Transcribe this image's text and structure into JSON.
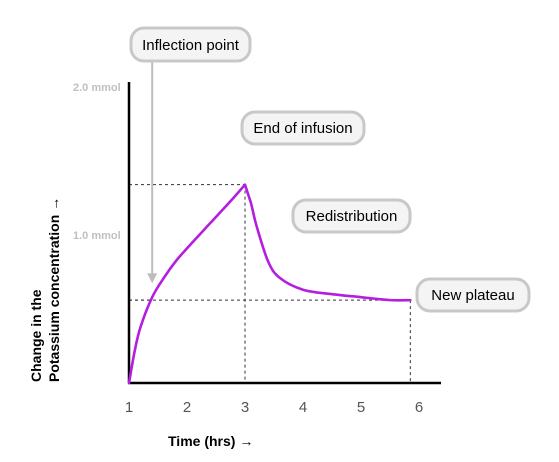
{
  "chart_data": {
    "type": "line",
    "xlabel": "Time (hrs) →",
    "ylabel_line1": "Change in the",
    "ylabel_line2": "Potassium concentration →",
    "x_ticks": [
      "1",
      "2",
      "3",
      "4",
      "5",
      "6"
    ],
    "y_ticks": [
      {
        "value": 2.0,
        "label": "2.0 mmol"
      },
      {
        "value": 1.0,
        "label": "1.0 mmol"
      }
    ],
    "xlim": [
      1,
      6.6
    ],
    "ylim": [
      0,
      2.2
    ],
    "series": [
      {
        "color": "#b31ee0",
        "x": [
          1.0,
          1.1,
          1.2,
          1.4,
          1.6,
          1.8,
          2.0,
          2.4,
          2.8,
          3.0,
          3.1,
          3.2,
          3.4,
          3.6,
          4.0,
          4.5,
          5.0,
          5.5,
          5.85
        ],
        "y": [
          0.0,
          0.22,
          0.38,
          0.58,
          0.71,
          0.82,
          0.91,
          1.08,
          1.25,
          1.34,
          1.22,
          1.06,
          0.82,
          0.71,
          0.63,
          0.6,
          0.58,
          0.56,
          0.56
        ]
      }
    ],
    "reference_lines": [
      {
        "x": 3.0,
        "y": 1.34
      },
      {
        "x": 1.4,
        "y": 0.56
      },
      {
        "x": 5.85,
        "y": 0.56
      }
    ],
    "annotations": [
      {
        "id": "inflection",
        "text": "Inflection point",
        "arrow_to": {
          "x": 1.4,
          "y": 0.68
        }
      },
      {
        "id": "end-infusion",
        "text": "End of infusion"
      },
      {
        "id": "redistribution",
        "text": "Redistribution"
      },
      {
        "id": "plateau",
        "text": "New plateau"
      }
    ],
    "grid": false,
    "legend": "none"
  }
}
